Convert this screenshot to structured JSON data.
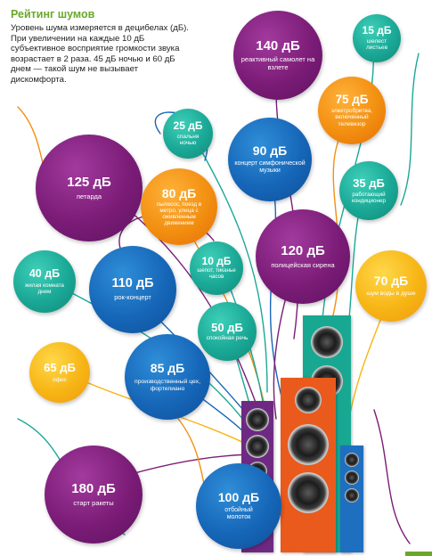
{
  "intro": {
    "title": "Рейтинг шумов",
    "text": "Уровень шума измеряется в децибелах (дБ). При увеличении на каждые 10 дБ субъективное восприятие громкости звука возрастает в 2 раза. 45 дБ ночью и 60 дБ днем — такой шум не вызывает дискомфорта."
  },
  "bubbles": [
    {
      "db": "140 дБ",
      "desc": "реактивный самолет на взлете",
      "color": "purple"
    },
    {
      "db": "15 дБ",
      "desc": "шелест листьев",
      "color": "teal"
    },
    {
      "db": "75 дБ",
      "desc": "электробритва, включенный телевизор",
      "color": "orange"
    },
    {
      "db": "25 дБ",
      "desc": "спальня ночью",
      "color": "teal"
    },
    {
      "db": "90 дБ",
      "desc": "концерт симфонической музыки",
      "color": "blue"
    },
    {
      "db": "125 дБ",
      "desc": "петарда",
      "color": "purple"
    },
    {
      "db": "80 дБ",
      "desc": "пылесос, поезд в метро, улица с оживленным движением",
      "color": "orange"
    },
    {
      "db": "35 дБ",
      "desc": "работающий кондиционер",
      "color": "teal"
    },
    {
      "db": "120 дБ",
      "desc": "полицейская сирена",
      "color": "purple"
    },
    {
      "db": "40 дБ",
      "desc": "жилая комната днем",
      "color": "teal"
    },
    {
      "db": "110 дБ",
      "desc": "рок-концерт",
      "color": "blue"
    },
    {
      "db": "10 дБ",
      "desc": "шепот, тиканье часов",
      "color": "teal"
    },
    {
      "db": "70 дБ",
      "desc": "шум воды в душе",
      "color": "yellow"
    },
    {
      "db": "50 дБ",
      "desc": "спокойная речь",
      "color": "teal"
    },
    {
      "db": "65 дБ",
      "desc": "офис",
      "color": "yellow"
    },
    {
      "db": "85 дБ",
      "desc": "производственный цех, фортепиано",
      "color": "blue"
    },
    {
      "db": "180 дБ",
      "desc": "старт ракеты",
      "color": "purple"
    },
    {
      "db": "100 дБ",
      "desc": "отбойный молоток",
      "color": "blue"
    }
  ],
  "colors": {
    "purple": "#7b1c77",
    "blue": "#1666b8",
    "teal": "#1aa896",
    "orange": "#f28f10",
    "yellow": "#f7b515",
    "title_green": "#6aa82a"
  }
}
